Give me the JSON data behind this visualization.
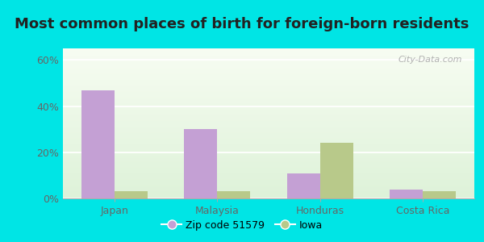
{
  "title": "Most common places of birth for foreign-born residents",
  "categories": [
    "Japan",
    "Malaysia",
    "Honduras",
    "Costa Rica"
  ],
  "zip_values": [
    47,
    30,
    11,
    4
  ],
  "iowa_values": [
    3,
    3,
    24,
    3
  ],
  "zip_color": "#c4a0d4",
  "iowa_color": "#b8c98a",
  "zip_label": "Zip code 51579",
  "iowa_label": "Iowa",
  "ylim": [
    0,
    65
  ],
  "yticks": [
    0,
    20,
    40,
    60
  ],
  "ytick_labels": [
    "0%",
    "20%",
    "40%",
    "60%"
  ],
  "bg_outer": "#00e5e5",
  "watermark": "City-Data.com",
  "bar_width": 0.32,
  "title_fontsize": 13,
  "tick_fontsize": 9,
  "legend_fontsize": 9
}
